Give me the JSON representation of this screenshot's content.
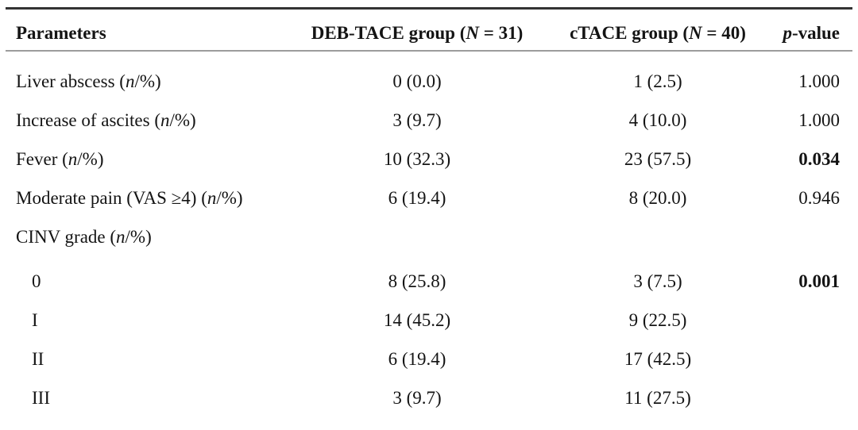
{
  "table": {
    "header": [
      {
        "parts": [
          {
            "text": "Parameters"
          }
        ]
      },
      {
        "parts": [
          {
            "text": "DEB-TACE group ("
          },
          {
            "text": "N",
            "italic": true
          },
          {
            "text": " = 31)"
          }
        ]
      },
      {
        "parts": [
          {
            "text": "cTACE group ("
          },
          {
            "text": "N",
            "italic": true
          },
          {
            "text": " = 40)"
          }
        ]
      },
      {
        "parts": [
          {
            "text": "p",
            "italic": true
          },
          {
            "text": "-value"
          }
        ]
      }
    ],
    "rows": [
      {
        "label_parts": [
          {
            "text": "Liver abscess ("
          },
          {
            "text": "n",
            "italic": true
          },
          {
            "text": "/%)"
          }
        ],
        "deb": "0 (0.0)",
        "ctace": "1 (2.5)",
        "p": "1.000",
        "p_bold": false,
        "indent": false
      },
      {
        "label_parts": [
          {
            "text": "Increase of ascites ("
          },
          {
            "text": "n",
            "italic": true
          },
          {
            "text": "/%)"
          }
        ],
        "deb": "3 (9.7)",
        "ctace": "4 (10.0)",
        "p": "1.000",
        "p_bold": false,
        "indent": false
      },
      {
        "label_parts": [
          {
            "text": "Fever ("
          },
          {
            "text": "n",
            "italic": true
          },
          {
            "text": "/%)"
          }
        ],
        "deb": "10 (32.3)",
        "ctace": "23 (57.5)",
        "p": "0.034",
        "p_bold": true,
        "indent": false
      },
      {
        "label_parts": [
          {
            "text": "Moderate pain (VAS ≥4) ("
          },
          {
            "text": "n",
            "italic": true
          },
          {
            "text": "/%)"
          }
        ],
        "deb": "6 (19.4)",
        "ctace": "8 (20.0)",
        "p": "0.946",
        "p_bold": false,
        "indent": false
      },
      {
        "label_parts": [
          {
            "text": "CINV grade ("
          },
          {
            "text": "n",
            "italic": true
          },
          {
            "text": "/%)"
          }
        ],
        "deb": "",
        "ctace": "",
        "p": "",
        "p_bold": false,
        "indent": false
      },
      {
        "label_parts": [
          {
            "text": "0"
          }
        ],
        "deb": "8 (25.8)",
        "ctace": "3 (7.5)",
        "p": "0.001",
        "p_bold": true,
        "indent": true,
        "extra_gap": true
      },
      {
        "label_parts": [
          {
            "text": "I"
          }
        ],
        "deb": "14 (45.2)",
        "ctace": "9 (22.5)",
        "p": "",
        "p_bold": false,
        "indent": true
      },
      {
        "label_parts": [
          {
            "text": "II"
          }
        ],
        "deb": "6 (19.4)",
        "ctace": "17 (42.5)",
        "p": "",
        "p_bold": false,
        "indent": true
      },
      {
        "label_parts": [
          {
            "text": "III"
          }
        ],
        "deb": "3 (9.7)",
        "ctace": "11 (27.5)",
        "p": "",
        "p_bold": false,
        "indent": true
      }
    ]
  }
}
